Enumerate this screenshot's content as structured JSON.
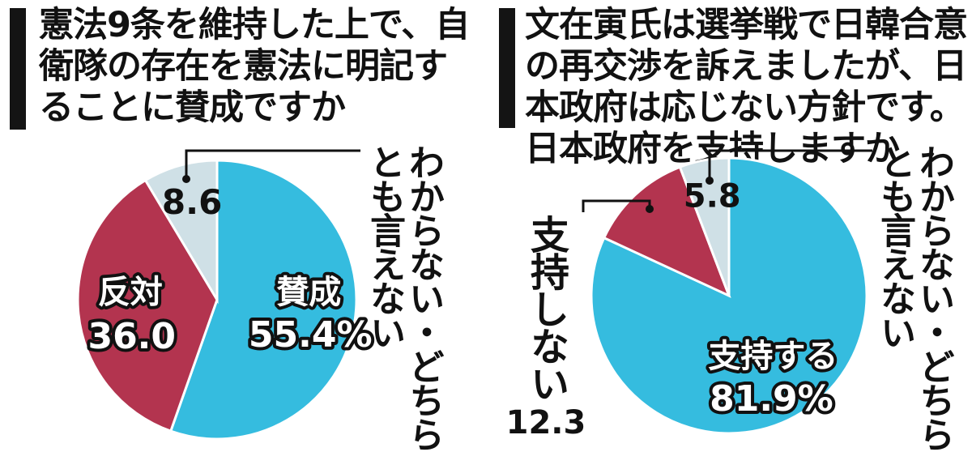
{
  "chart_data": [
    {
      "type": "pie",
      "title": "憲法9条を維持した上で、自衛隊の存在を憲法に明記することに賛成ですか",
      "slices": [
        {
          "name": "賛成",
          "value": 55.4,
          "value_label": "55.4%",
          "color": "#35bcdf"
        },
        {
          "name": "反対",
          "value": 36.0,
          "value_label": "36.0",
          "color": "#b3344f"
        },
        {
          "name": "わからない・どちらとも言えない",
          "value": 8.6,
          "value_label": "8.6",
          "color": "#cfe0e6"
        }
      ]
    },
    {
      "type": "pie",
      "title": "文在寅氏は選挙戦で日韓合意の再交渉を訴えましたが、日本政府は応じない方針です。日本政府を支持しますか",
      "slices": [
        {
          "name": "支持する",
          "value": 81.9,
          "value_label": "81.9%",
          "color": "#35bcdf"
        },
        {
          "name": "支持しない",
          "value": 12.3,
          "value_label": "12.3",
          "color": "#b3344f"
        },
        {
          "name": "わからない・どちらとも言えない",
          "value": 5.8,
          "value_label": "5.8",
          "color": "#cfe0e6"
        }
      ]
    }
  ]
}
